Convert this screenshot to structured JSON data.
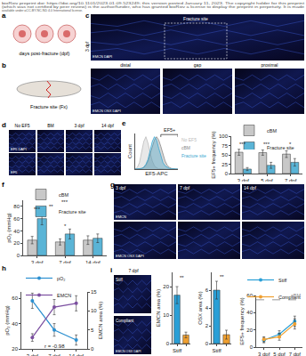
{
  "header": [
    "bioRxiv preprint doi: https://doi.org/10.1101/2023.01.09.523249; this version posted January 11, 2023. The copyright holder for this preprint",
    "(which was not certified by peer review) is the author/funder, who has granted bioRxiv a license to display the preprint in perpetuity. It is made",
    "available under aCC-BY-NC-ND 4.0 International license."
  ],
  "panel_letters": [
    "a",
    "b",
    "c",
    "d",
    "e",
    "f",
    "g",
    "h",
    "i"
  ],
  "schematics": {
    "a": {
      "label": "days post-fracture (dpf)"
    },
    "b": {
      "label": "Fracture site (Fx)"
    }
  },
  "image_panels": {
    "c": {
      "time": "3 dpf",
      "title": "Fracture site",
      "regions": [
        "distal",
        "gap",
        "proximal"
      ],
      "stains": [
        "EMCN DAPI",
        "EMCN OSX DAPI"
      ]
    },
    "d": {
      "columns": [
        "No EF5",
        "BM",
        "3 dpf",
        "14 dpf"
      ],
      "rows": [
        "EF5 DAPI",
        "EF5"
      ]
    },
    "g": {
      "columns": [
        "3 dpf",
        "7 dpf",
        "14 dpf"
      ],
      "stains": [
        "EMCN",
        "EMCN OSX DAPI"
      ]
    },
    "i": {
      "time": "7 dpf",
      "rows": [
        "Stiff",
        "Compliant"
      ],
      "stain": "EMCN OSX DAPI"
    }
  },
  "chart_data": [
    {
      "type": "area",
      "x_label": "EF5-APC",
      "y_label": "Count",
      "tick_labels": false,
      "x": [
        0,
        0.5,
        1,
        1.5,
        2,
        2.5,
        3,
        3.5,
        4,
        4.5,
        5,
        5.5,
        6,
        6.5,
        7,
        7.5,
        8,
        8.5,
        9,
        9.5,
        10
      ],
      "xlim": [
        0,
        10
      ],
      "ylim": [
        0,
        1.1
      ],
      "series": [
        {
          "name": "No EF5",
          "color": "#bbbbbb",
          "values": [
            0,
            0.05,
            0.2,
            0.5,
            0.85,
            1.0,
            0.8,
            0.5,
            0.25,
            0.1,
            0.04,
            0.01,
            0,
            0,
            0,
            0,
            0,
            0,
            0,
            0,
            0
          ]
        },
        {
          "name": "cBM",
          "color": "#888888",
          "values": [
            0,
            0,
            0,
            0.02,
            0.05,
            0.12,
            0.25,
            0.45,
            0.7,
            0.9,
            1.0,
            0.9,
            0.7,
            0.45,
            0.25,
            0.12,
            0.05,
            0.02,
            0,
            0,
            0
          ]
        },
        {
          "name": "Fracture site",
          "color": "#3aa6d0",
          "values": [
            0,
            0,
            0,
            0.02,
            0.06,
            0.15,
            0.3,
            0.55,
            0.85,
            1.0,
            0.9,
            0.65,
            0.4,
            0.2,
            0.1,
            0.05,
            0.02,
            0.01,
            0,
            0,
            0
          ]
        }
      ],
      "gate": {
        "label": "EF5+",
        "range": [
          6,
          10
        ]
      }
    },
    {
      "type": "bar",
      "y_label": "EF5+ frequency (%)",
      "categories": [
        "3 dpf",
        "5 dpf",
        "7 dpf"
      ],
      "series": [
        {
          "name": "cBM",
          "color": "#c8c8c8",
          "values": [
            57,
            56,
            52
          ],
          "errors": [
            8,
            7,
            9
          ]
        },
        {
          "name": "Fracture site",
          "color": "#5ab4d6",
          "values": [
            12,
            22,
            30
          ],
          "errors": [
            4,
            8,
            10
          ]
        }
      ],
      "ylim": [
        0,
        100
      ],
      "yticks": [
        0,
        25,
        50,
        75,
        100
      ],
      "legend": "top",
      "annotations": [
        {
          "text": "***",
          "x": 0,
          "y": 78
        },
        {
          "text": "***",
          "x": 1,
          "y": 78
        },
        {
          "text": "*",
          "x": 2,
          "y": 78
        }
      ]
    },
    {
      "type": "bar",
      "y_label": "pO₂ (mmHg)",
      "categories": [
        "3 dpf",
        "7 dpf",
        "14 dpf"
      ],
      "series": [
        {
          "name": "cBM",
          "color": "#c8c8c8",
          "values": [
            25,
            22,
            25
          ],
          "errors": [
            6,
            5,
            7
          ]
        },
        {
          "name": "Fracture site",
          "color": "#5ab4d6",
          "values": [
            60,
            35,
            28
          ],
          "errors": [
            10,
            8,
            7
          ]
        }
      ],
      "ylim": [
        0,
        90
      ],
      "yticks": [
        0,
        20,
        40,
        60,
        80
      ],
      "legend": "top",
      "annotations": [
        {
          "text": "***",
          "x": 0,
          "y": 75
        },
        {
          "text": "**",
          "x": 0.5,
          "y": 80
        },
        {
          "text": "*",
          "x": 1,
          "y": 48
        },
        {
          "text": "***",
          "x": 1,
          "y": 87
        }
      ]
    },
    {
      "type": "line",
      "y_label": "pO₂ (mmHg)",
      "y2_label": "EMCN area (%)",
      "categories": [
        "3 dpf",
        "7 dpf",
        "14 dpf"
      ],
      "series": [
        {
          "name": "pO₂",
          "color": "#2a8fd0",
          "values": [
            58,
            35,
            27
          ],
          "errors": [
            6,
            5,
            4
          ]
        },
        {
          "name": "EMCN",
          "color": "#7b4fa0",
          "values": [
            3,
            11,
            12
          ],
          "errors": [
            1,
            2,
            2
          ],
          "axis": "y2"
        }
      ],
      "ylim": [
        20,
        65
      ],
      "yticks": [
        20,
        40,
        60
      ],
      "y2lim": [
        0,
        15
      ],
      "y2ticks": [
        0,
        5,
        10,
        15
      ],
      "legend": "top",
      "annotations": [
        {
          "text": "r = -0.98",
          "x": 1,
          "y": 22
        }
      ]
    },
    {
      "type": "bar",
      "y_label": "EMCN area (%)",
      "categories": [
        "Stiff",
        "Comp"
      ],
      "values": [
        17,
        3
      ],
      "errors": [
        3,
        1
      ],
      "colors": [
        "#2a9fd6",
        "#f0a030"
      ],
      "ylim": [
        0,
        25
      ],
      "yticks": [
        0,
        10,
        20
      ],
      "annotations": [
        {
          "text": "**",
          "x": 0.5,
          "y": 23
        }
      ]
    },
    {
      "type": "bar",
      "y_label": "OSX area (%)",
      "categories": [
        "Stiff",
        "Comp"
      ],
      "values": [
        6,
        1
      ],
      "errors": [
        1,
        0.5
      ],
      "colors": [
        "#2a9fd6",
        "#f0a030"
      ],
      "ylim": [
        0,
        8
      ],
      "yticks": [
        0,
        2,
        4,
        6
      ],
      "annotations": [
        {
          "text": "**",
          "x": 0.5,
          "y": 7.5
        }
      ]
    },
    {
      "type": "line",
      "y_label": "EF5+ frequency (%)",
      "categories": [
        "3 dpf",
        "5 dpf",
        "7 dpf"
      ],
      "series": [
        {
          "name": "Stiff",
          "color": "#2a9fd6",
          "values": [
            8,
            15,
            30
          ],
          "errors": [
            3,
            4,
            6
          ]
        },
        {
          "name": "Compliant",
          "color": "#f0a030",
          "values": [
            9,
            12,
            27
          ],
          "errors": [
            3,
            4,
            6
          ]
        }
      ],
      "ylim": [
        0,
        60
      ],
      "yticks": [
        0,
        20,
        40,
        60
      ],
      "legend": "top-left",
      "reference": {
        "label": "cBM",
        "value": 55
      }
    }
  ]
}
